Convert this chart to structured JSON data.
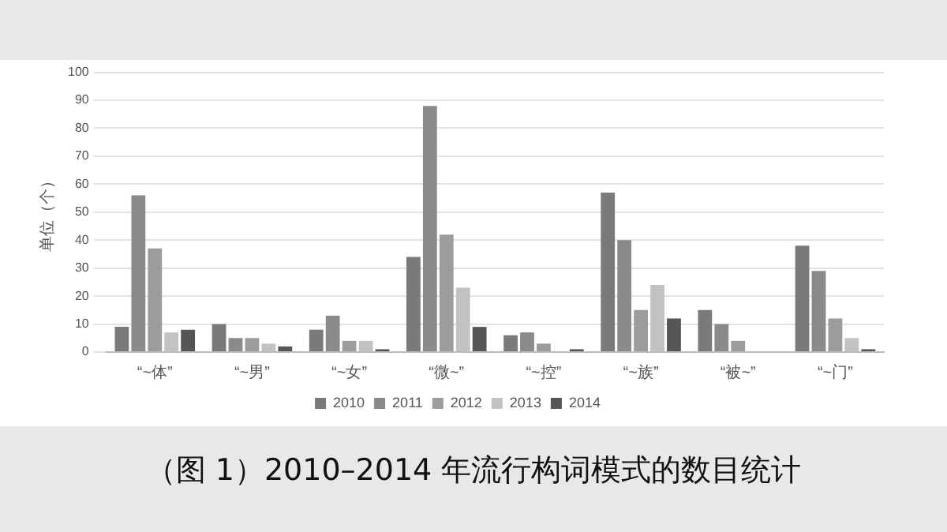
{
  "chart_data": {
    "type": "bar",
    "title": "（图 1）2010–2014 年流行构词模式的数目统计",
    "ylabel": "单位（个）",
    "categories": [
      "“~体”",
      "“~男”",
      "“~女”",
      "“微~”",
      "“~控”",
      "“~族”",
      "“被~”",
      "“~门”"
    ],
    "series": [
      {
        "name": "2010",
        "color": "#7a7a7a",
        "values": [
          9,
          10,
          8,
          34,
          6,
          57,
          15,
          38
        ]
      },
      {
        "name": "2011",
        "color": "#8a8a8a",
        "values": [
          56,
          5,
          13,
          88,
          7,
          40,
          10,
          29
        ]
      },
      {
        "name": "2012",
        "color": "#9c9c9c",
        "values": [
          37,
          5,
          4,
          42,
          3,
          15,
          4,
          12
        ]
      },
      {
        "name": "2013",
        "color": "#c2c2c2",
        "values": [
          7,
          3,
          4,
          23,
          0,
          24,
          0,
          5
        ]
      },
      {
        "name": "2014",
        "color": "#555555",
        "values": [
          8,
          2,
          1,
          9,
          1,
          12,
          0,
          1
        ]
      }
    ],
    "ylim": [
      0,
      100
    ],
    "yticks": [
      0,
      10,
      20,
      30,
      40,
      50,
      60,
      70,
      80,
      90,
      100
    ],
    "grid": "y",
    "legend": "bottom"
  }
}
